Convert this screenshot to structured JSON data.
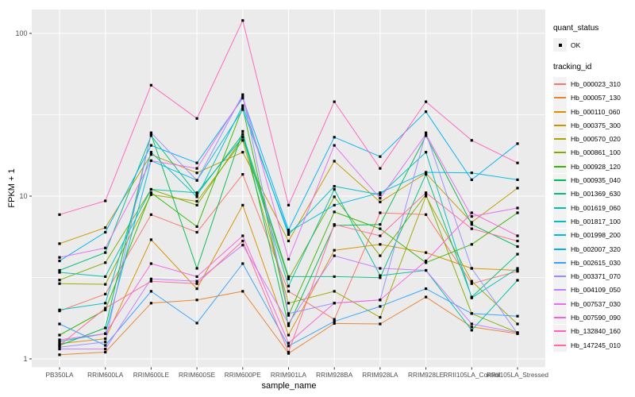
{
  "chart_data": {
    "type": "line",
    "xlabel": "sample_name",
    "ylabel": "FPKM + 1",
    "y_scale": "log10",
    "y_ticks": [
      1,
      10,
      100
    ],
    "y_minor_breaks": [
      3.162,
      31.62
    ],
    "ylim": [
      1,
      140
    ],
    "grid": "on",
    "legend_position": "right",
    "categories": [
      "PB350LA",
      "RRIM600LA",
      "RRIM600LE",
      "RRIM600SE",
      "RRIM600PE",
      "RRIM901LA",
      "RRIM928BA",
      "RRIM928LA",
      "RRIM928LE",
      "RRII105LA_Control",
      "RRII105LA_Stressed"
    ],
    "legend": {
      "quant_status_title": "quant_status",
      "quant_status_items": [
        "OK"
      ],
      "tracking_id_title": "tracking_id"
    },
    "point_color": "#000000",
    "series": [
      {
        "name": "Hb_000023_310",
        "color": "#F8766D",
        "values": [
          1.97,
          2.5,
          7.7,
          6.0,
          13.6,
          2.6,
          1.75,
          7.9,
          7.7,
          2.9,
          3.45
        ]
      },
      {
        "name": "Hb_000057_130",
        "color": "#EA8331",
        "values": [
          1.06,
          1.1,
          2.2,
          2.3,
          2.6,
          1.08,
          1.65,
          1.64,
          2.4,
          1.57,
          1.43
        ]
      },
      {
        "name": "Hb_000110_060",
        "color": "#D89000",
        "values": [
          1.24,
          1.33,
          5.4,
          2.7,
          8.8,
          1.4,
          4.65,
          5.05,
          4.5,
          3.6,
          3.5
        ]
      },
      {
        "name": "Hb_000375_300",
        "color": "#C09B00",
        "values": [
          5.1,
          6.4,
          18.0,
          13.9,
          18.6,
          5.3,
          16.4,
          9.2,
          13.8,
          6.9,
          11.2
        ]
      },
      {
        "name": "Hb_000570_020",
        "color": "#A3A500",
        "values": [
          2.9,
          2.87,
          10.2,
          9.3,
          22.0,
          2.2,
          2.6,
          1.8,
          10.0,
          3.0,
          1.64
        ]
      },
      {
        "name": "Hb_000861_100",
        "color": "#7CAE00",
        "values": [
          3.05,
          3.9,
          11.0,
          8.8,
          23.0,
          3.1,
          9.9,
          4.3,
          10.2,
          1.9,
          1.45
        ]
      },
      {
        "name": "Hb_000928_120",
        "color": "#39B600",
        "values": [
          1.4,
          2.0,
          10.5,
          6.5,
          35.0,
          1.85,
          8.0,
          6.3,
          3.9,
          5.05,
          7.9
        ]
      },
      {
        "name": "Hb_000935_040",
        "color": "#00BB4E",
        "values": [
          1.21,
          1.55,
          24.0,
          3.6,
          25.0,
          1.6,
          6.6,
          6.7,
          23.5,
          6.7,
          4.9
        ]
      },
      {
        "name": "Hb_001369_630",
        "color": "#00BF7D",
        "values": [
          3.5,
          4.5,
          23.5,
          10.2,
          24.0,
          3.2,
          3.2,
          3.15,
          13.6,
          2.4,
          4.4
        ]
      },
      {
        "name": "Hb_001619_060",
        "color": "#00C1A3",
        "values": [
          3.4,
          3.2,
          11.0,
          10.5,
          23.0,
          2.8,
          11.0,
          3.25,
          3.5,
          1.5,
          3.04
        ]
      },
      {
        "name": "Hb_001817_100",
        "color": "#00BFC4",
        "values": [
          2.0,
          2.2,
          18.6,
          9.9,
          36.0,
          5.8,
          11.5,
          10.2,
          18.6,
          2.37,
          3.6
        ]
      },
      {
        "name": "Hb_001998_200",
        "color": "#00BAE0",
        "values": [
          1.28,
          1.43,
          16.5,
          12.5,
          34.0,
          6.0,
          8.8,
          10.5,
          14.0,
          13.9,
          12.6
        ]
      },
      {
        "name": "Hb_002007_320",
        "color": "#00B0F6",
        "values": [
          4.0,
          6.0,
          20.5,
          16.0,
          40.0,
          6.2,
          23.0,
          17.5,
          33.0,
          12.6,
          21.0
        ]
      },
      {
        "name": "Hb_002615_030",
        "color": "#35A2FF",
        "values": [
          1.64,
          1.21,
          2.6,
          1.66,
          3.85,
          1.2,
          1.7,
          2.1,
          2.7,
          1.9,
          1.83
        ]
      },
      {
        "name": "Hb_003371_070",
        "color": "#9590FF",
        "values": [
          1.18,
          1.27,
          24.5,
          12.5,
          42.0,
          1.9,
          2.2,
          2.3,
          24.5,
          3.6,
          1.43
        ]
      },
      {
        "name": "Hb_004109_050",
        "color": "#C77CFF",
        "values": [
          1.15,
          1.15,
          3.1,
          3.0,
          5.0,
          1.65,
          4.3,
          3.6,
          3.5,
          1.64,
          1.45
        ]
      },
      {
        "name": "Hb_007537_030",
        "color": "#E76BF3",
        "values": [
          4.2,
          4.8,
          16.5,
          14.8,
          41.0,
          4.1,
          20.5,
          9.7,
          24.0,
          7.5,
          8.45
        ]
      },
      {
        "name": "Hb_007590_090",
        "color": "#FA62DB",
        "values": [
          1.31,
          1.43,
          3.85,
          3.2,
          5.7,
          1.25,
          2.2,
          2.3,
          4.0,
          7.9,
          5.7
        ]
      },
      {
        "name": "Hb_132840_160",
        "color": "#FF62BC",
        "values": [
          7.7,
          9.35,
          48.0,
          30.0,
          120.0,
          8.8,
          38.0,
          14.8,
          38.0,
          22.0,
          16.0
        ]
      },
      {
        "name": "Hb_147245_010",
        "color": "#FF6A98",
        "values": [
          1.21,
          2.05,
          3.0,
          2.9,
          5.3,
          1.1,
          6.7,
          5.7,
          10.5,
          6.3,
          5.3
        ]
      }
    ]
  },
  "style": {
    "panel_bg": "#EBEBEB",
    "grid_color": "#FFFFFF",
    "tick_color": "#333333",
    "tick_label_color": "#4D4D4D",
    "legend_key_bg": "#F2F2F2"
  }
}
